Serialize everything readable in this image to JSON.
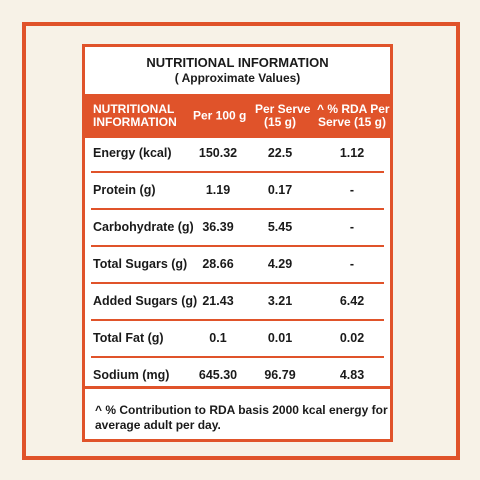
{
  "header": {
    "title": "NUTRITIONAL INFORMATION",
    "subtitle": "( Approximate Values)"
  },
  "table": {
    "columns": [
      [
        "NUTRITIONAL",
        "INFORMATION"
      ],
      [
        "Per 100 g"
      ],
      [
        "Per Serve",
        "(15 g)"
      ],
      [
        "^ % RDA Per",
        "Serve (15 g)"
      ]
    ],
    "rows": [
      [
        "Energy (kcal)",
        "150.32",
        "22.5",
        "1.12"
      ],
      [
        "Protein (g)",
        "1.19",
        "0.17",
        "-"
      ],
      [
        "Carbohydrate (g)",
        "36.39",
        "5.45",
        "-"
      ],
      [
        "Total Sugars (g)",
        "28.66",
        "4.29",
        "-"
      ],
      [
        "Added Sugars (g)",
        "21.43",
        "3.21",
        "6.42"
      ],
      [
        "Total Fat (g)",
        "0.1",
        "0.01",
        "0.02"
      ],
      [
        "Sodium (mg)",
        "645.30",
        "96.79",
        "4.83"
      ]
    ]
  },
  "footnote": [
    "^ % Contribution to RDA basis 2000 kcal energy for",
    "average adult per day."
  ]
}
